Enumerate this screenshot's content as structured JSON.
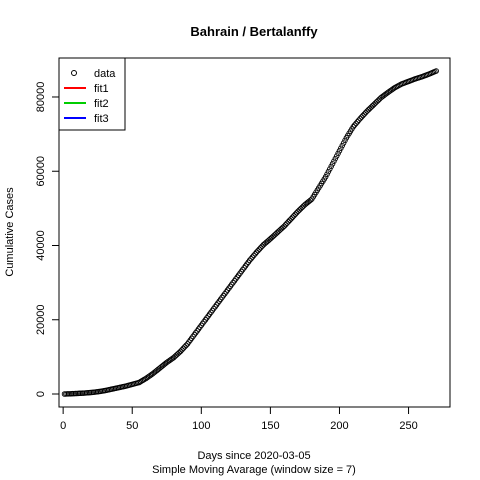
{
  "chart_data": {
    "type": "scatter",
    "title": "Bahrain / Bertalanffy",
    "xlabel": "Days since 2020-03-05",
    "xlabel2": "Simple Moving Avarage (window size = 7)",
    "ylabel": "Cumulative Cases",
    "xlim": [
      -3,
      280
    ],
    "ylim": [
      -3500,
      90500
    ],
    "xticks": [
      0,
      50,
      100,
      150,
      200,
      250
    ],
    "yticks": [
      0,
      20000,
      40000,
      60000,
      80000
    ],
    "legend": {
      "placement": "top-left",
      "entries": [
        {
          "label": "data",
          "type": "point",
          "color": "#000000"
        },
        {
          "label": "fit1",
          "type": "line",
          "color": "#ff0000"
        },
        {
          "label": "fit2",
          "type": "line",
          "color": "#00cd00"
        },
        {
          "label": "fit3",
          "type": "line",
          "color": "#0000ff"
        }
      ]
    },
    "series": [
      {
        "name": "data",
        "x": [
          1,
          5,
          10,
          15,
          20,
          25,
          30,
          35,
          40,
          45,
          50,
          55,
          60,
          65,
          70,
          75,
          80,
          85,
          90,
          95,
          100,
          105,
          110,
          115,
          120,
          125,
          130,
          135,
          140,
          145,
          150,
          155,
          160,
          165,
          170,
          175,
          180,
          185,
          190,
          195,
          200,
          205,
          210,
          215,
          220,
          225,
          230,
          235,
          240,
          245,
          250,
          255,
          260,
          265,
          270
        ],
        "y": [
          0,
          50,
          150,
          250,
          400,
          600,
          900,
          1300,
          1700,
          2100,
          2600,
          3100,
          4200,
          5500,
          7000,
          8500,
          9800,
          11500,
          13500,
          16000,
          18500,
          21000,
          23500,
          26000,
          28500,
          31000,
          33500,
          36000,
          38200,
          40200,
          41800,
          43500,
          45200,
          47200,
          49200,
          51000,
          52500,
          55500,
          58500,
          62000,
          65500,
          69000,
          72000,
          74200,
          76200,
          78000,
          79800,
          81200,
          82500,
          83500,
          84200,
          84900,
          85500,
          86200,
          87000
        ]
      }
    ]
  }
}
